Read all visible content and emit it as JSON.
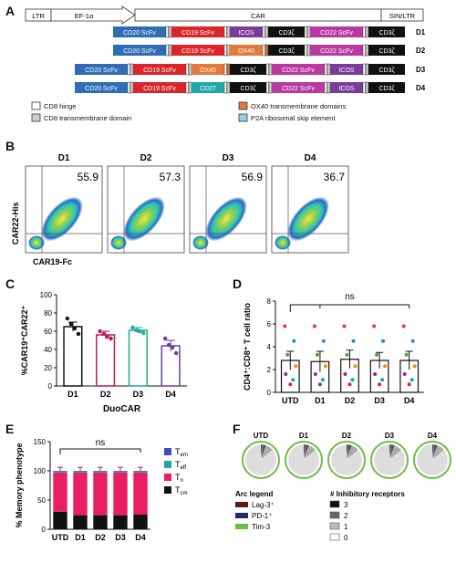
{
  "panel_labels": {
    "a": "A",
    "b": "B",
    "c": "C",
    "d": "D",
    "e": "E",
    "f": "F"
  },
  "panelA": {
    "vector": {
      "ltr": "LTR",
      "promoter": "EF-1α",
      "car": "CAR",
      "sin_ltr": "SIN/LTR"
    },
    "constructs": [
      {
        "name": "D1",
        "segments": [
          "CD20 ScFv",
          "CD19 ScFv",
          "ICOS",
          "CD3ζ",
          "CD22 ScFv",
          "CD3ζ"
        ]
      },
      {
        "name": "D2",
        "segments": [
          "CD20 ScFv",
          "CD19 ScFv",
          "OX40",
          "CD3ζ",
          "CD22 ScFv",
          "CD3ζ"
        ]
      },
      {
        "name": "D3",
        "segments": [
          "CD20 ScFv",
          "CD19 ScFv",
          "OX40",
          "CD3ζ",
          "CD22 ScFv",
          "ICOS",
          "CD3ζ"
        ]
      },
      {
        "name": "D4",
        "segments": [
          "CD20 ScFv",
          "CD19 ScFv",
          "CD27",
          "CD3ζ",
          "CD22 ScFv",
          "ICOS",
          "CD3ζ"
        ]
      }
    ],
    "legend": [
      "CD8 hinge",
      "CD8 transmembrane domain",
      "OX40 transmembrane domains",
      "P2A ribosomal skip element"
    ],
    "colors": {
      "cd20": "#2f6db5",
      "cd19": "#d9262b",
      "icos": "#7a3c96",
      "ox40": "#e07b39",
      "cd27": "#20a8a8",
      "cd3z": "#111111",
      "cd22": "#b83aa0",
      "hinge": "#ffffff",
      "tm": "#cfcfcf",
      "p2a": "#8fd3e0"
    }
  },
  "panelB": {
    "plots": [
      {
        "name": "D1",
        "value": "55.9"
      },
      {
        "name": "D2",
        "value": "57.3"
      },
      {
        "name": "D3",
        "value": "56.9"
      },
      {
        "name": "D4",
        "value": "36.7"
      }
    ],
    "ylabel": "CAR22-His",
    "xlabel": "CAR19-Fc"
  },
  "chart_data": [
    {
      "type": "bar",
      "panel": "C",
      "categories": [
        "D1",
        "D2",
        "D3",
        "D4"
      ],
      "values": [
        65,
        56,
        61,
        44
      ],
      "errors": [
        5,
        4,
        3,
        6
      ],
      "colors": [
        "#111111",
        "#c2185b",
        "#26a69a",
        "#6a3d9a"
      ],
      "points": [
        [
          74,
          68,
          63,
          57
        ],
        [
          60,
          57,
          54,
          52
        ],
        [
          64,
          61,
          60,
          58
        ],
        [
          52,
          45,
          42,
          36
        ]
      ],
      "ylabel": "%CAR19⁺CAR22⁺",
      "xlabel": "DuoCAR",
      "ylim": [
        0,
        100
      ],
      "yticks": [
        "0",
        "20",
        "40",
        "60",
        "80",
        "100"
      ]
    },
    {
      "type": "bar",
      "panel": "D",
      "categories": [
        "UTD",
        "D1",
        "D2",
        "D3",
        "D4"
      ],
      "values": [
        2.8,
        2.7,
        2.9,
        2.8,
        2.8
      ],
      "errors": [
        0.8,
        0.9,
        0.8,
        0.7,
        0.8
      ],
      "ylabel": "CD4⁺:CD8⁺ T cell ratio",
      "ylim": [
        0,
        8
      ],
      "yticks": [
        "0",
        "2",
        "4",
        "6",
        "8"
      ],
      "annotation": "ns",
      "point_colors": [
        "#e53935",
        "#1e88e5",
        "#43a047",
        "#fb8c00",
        "#8e24aa",
        "#00acc1",
        "#d81b60"
      ]
    },
    {
      "type": "bar",
      "stacked": true,
      "panel": "E",
      "categories": [
        "UTD",
        "D1",
        "D2",
        "D3",
        "D4"
      ],
      "series": [
        {
          "name": "Tcm",
          "label_main": "T",
          "label_sub": "cm",
          "color": "#111111",
          "values": [
            30,
            24,
            24,
            24,
            25
          ]
        },
        {
          "name": "Tn",
          "label_main": "T",
          "label_sub": "n",
          "color": "#e91e63",
          "values": [
            67,
            73,
            73,
            73,
            72
          ]
        },
        {
          "name": "Teff",
          "label_main": "T",
          "label_sub": "eff",
          "color": "#26a69a",
          "values": [
            2,
            2,
            2,
            2,
            2
          ]
        },
        {
          "name": "Tem",
          "label_main": "T",
          "label_sub": "em",
          "color": "#3f51b5",
          "values": [
            1,
            1,
            1,
            1,
            1
          ]
        }
      ],
      "ylabel": "% Memory phenotype",
      "ylim": [
        0,
        150
      ],
      "yticks": [
        "0",
        "50",
        "100",
        "150"
      ],
      "annotation": "ns"
    },
    {
      "type": "pie",
      "panel": "F",
      "categories": [
        "UTD",
        "D1",
        "D2",
        "D3",
        "D4"
      ],
      "slices": [
        {
          "name": "3",
          "color": "#111111",
          "values": [
            2,
            2,
            2,
            2,
            2
          ]
        },
        {
          "name": "2",
          "color": "#555555",
          "values": [
            4,
            4,
            4,
            4,
            4
          ]
        },
        {
          "name": "1",
          "color": "#aaaaaa",
          "values": [
            8,
            8,
            8,
            8,
            8
          ]
        },
        {
          "name": "0",
          "color": "#dddddd",
          "values": [
            86,
            86,
            86,
            86,
            86
          ]
        }
      ],
      "arc_legend_title": "Arc legend",
      "arc_legend": [
        {
          "label": "Lag-3⁺",
          "color": "#5d1a1a"
        },
        {
          "label": "PD-1⁺",
          "color": "#1f2d6b"
        },
        {
          "label": "Tim-3",
          "color": "#6abf4b"
        }
      ],
      "receptor_legend_title": "# Inhibitory receptors",
      "receptor_legend": [
        {
          "label": "3",
          "color": "#111111"
        },
        {
          "label": "2",
          "color": "#666666"
        },
        {
          "label": "1",
          "color": "#bbbbbb"
        },
        {
          "label": "0",
          "color": "#ffffff"
        }
      ]
    }
  ]
}
